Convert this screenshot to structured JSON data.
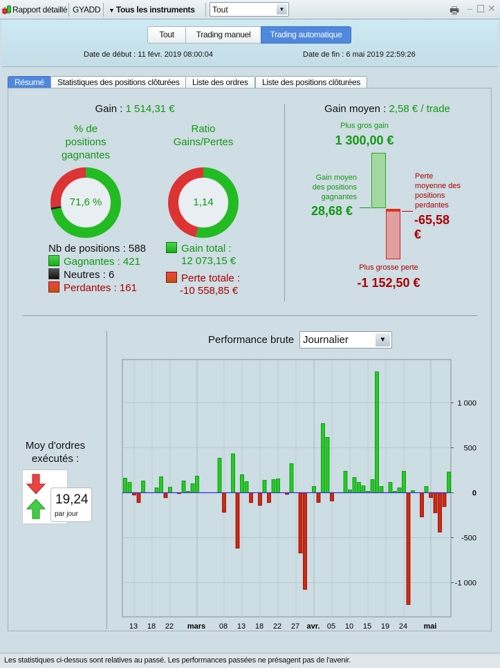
{
  "toolbar": {
    "report_label": "Rapport détaillé",
    "account": "GYADD",
    "instruments_label": "Tous les instruments",
    "filter_value": "Tout",
    "icons": [
      "candlestick-icon",
      "print-icon",
      "minimize-icon",
      "maximize-icon",
      "close-icon"
    ]
  },
  "header": {
    "segments": [
      "Tout",
      "Trading manuel",
      "Trading automatique"
    ],
    "active_segment": "Trading automatique",
    "start_label": "Date de début :",
    "start_value": "11 févr. 2019 08:00:04",
    "end_label": "Date de fin :",
    "end_value": "6 mai 2019 22:59:26"
  },
  "tabs": [
    "Résumé",
    "Statistiques des positions clôturées",
    "Liste des ordres",
    "Liste des positions clôturées"
  ],
  "active_tab": "Résumé",
  "summary": {
    "gain_label": "Gain :",
    "gain_value": "1 514,31 €",
    "win_pct_title_1": "% de",
    "win_pct_title_2": "positions",
    "win_pct_title_3": "gagnantes",
    "win_pct_value": "71,6 %",
    "ratio_title_1": "Ratio",
    "ratio_title_2": "Gains/Pertes",
    "ratio_value": "1,14",
    "positions_label": "Nb de positions : 588",
    "winners": "Gagnantes : 421",
    "neutral": "Neutres : 6",
    "losers": "Perdantes : 161",
    "positions_counts": {
      "winners": 421,
      "neutral": 6,
      "losers": 161
    },
    "gain_total_label": "Gain total :",
    "gain_total_value": "12 073,15 €",
    "loss_total_label": "Perte totale :",
    "loss_total_value": "-10 558,85 €",
    "gain_loss_amounts": {
      "gain": 12073.15,
      "loss": 10558.85
    },
    "colors": {
      "gain": "#22bb22",
      "loss": "#dd3333",
      "neutral": "#222222"
    }
  },
  "averages": {
    "avg_gain_label": "Gain moyen :",
    "avg_gain_value": "2,58 € / trade",
    "biggest_gain_label": "Plus gros gain",
    "biggest_gain_value": "1 300,00 €",
    "avg_win_label_1": "Gain moyen",
    "avg_win_label_2": "des positions",
    "avg_win_label_3": "gagnantes",
    "avg_win_value": "28,68 €",
    "avg_loss_label_1": "Perte",
    "avg_loss_label_2": "moyenne des",
    "avg_loss_label_3": "positions",
    "avg_loss_label_4": "perdantes",
    "avg_loss_value_1": "-65,58",
    "avg_loss_value_2": "€",
    "biggest_loss_label": "Plus grosse perte",
    "biggest_loss_value": "-1 152,50 €"
  },
  "orders": {
    "label_1": "Moy d'ordres",
    "label_2": "exécutés :",
    "value": "19,24",
    "unit": "par jour"
  },
  "performance": {
    "label": "Performance brute",
    "period_value": "Journalier"
  },
  "chart_data": {
    "type": "bar",
    "ylim": [
      -1380,
      1480
    ],
    "y_ticks": [
      1000,
      500,
      0,
      -500,
      -1000
    ],
    "y_tick_labels": [
      "1 000",
      "500",
      "0",
      "-500",
      "-1 000"
    ],
    "x_ticks": [
      {
        "date": "2019-02-13",
        "label": "13"
      },
      {
        "date": "2019-02-18",
        "label": "18"
      },
      {
        "date": "2019-02-22",
        "label": "22"
      },
      {
        "date": "2019-03-01",
        "label": "mars",
        "bold": true
      },
      {
        "date": "2019-03-08",
        "label": "08"
      },
      {
        "date": "2019-03-13",
        "label": "13"
      },
      {
        "date": "2019-03-18",
        "label": "18"
      },
      {
        "date": "2019-03-22",
        "label": "22"
      },
      {
        "date": "2019-03-27",
        "label": "27"
      },
      {
        "date": "2019-04-01",
        "label": "avr.",
        "bold": true
      },
      {
        "date": "2019-04-05",
        "label": "05"
      },
      {
        "date": "2019-04-10",
        "label": "10"
      },
      {
        "date": "2019-04-15",
        "label": "15"
      },
      {
        "date": "2019-04-19",
        "label": "19"
      },
      {
        "date": "2019-04-24",
        "label": "24"
      },
      {
        "date": "2019-05-01",
        "label": "mai",
        "bold": true
      }
    ],
    "grid": true,
    "colors": {
      "positive": "#22cc22",
      "negative": "#cc2a10",
      "zero_line": "#3333cc"
    },
    "x": [
      "2019-02-11",
      "2019-02-12",
      "2019-02-13",
      "2019-02-14",
      "2019-02-15",
      "2019-02-19",
      "2019-02-20",
      "2019-02-21",
      "2019-02-22",
      "2019-02-25",
      "2019-02-26",
      "2019-02-27",
      "2019-02-28",
      "2019-03-01",
      "2019-03-07",
      "2019-03-08",
      "2019-03-11",
      "2019-03-12",
      "2019-03-13",
      "2019-03-14",
      "2019-03-15",
      "2019-03-18",
      "2019-03-19",
      "2019-03-20",
      "2019-03-21",
      "2019-03-22",
      "2019-03-25",
      "2019-03-26",
      "2019-03-28",
      "2019-03-29",
      "2019-04-01",
      "2019-04-02",
      "2019-04-03",
      "2019-04-04",
      "2019-04-05",
      "2019-04-09",
      "2019-04-10",
      "2019-04-11",
      "2019-04-12",
      "2019-04-14",
      "2019-04-15",
      "2019-04-16",
      "2019-04-17",
      "2019-04-18",
      "2019-04-21",
      "2019-04-22",
      "2019-04-23",
      "2019-04-24",
      "2019-04-25",
      "2019-04-26",
      "2019-04-29",
      "2019-04-30",
      "2019-05-01",
      "2019-05-02",
      "2019-05-03",
      "2019-05-05",
      "2019-05-06"
    ],
    "values": [
      161,
      115,
      -26,
      -110,
      131,
      54,
      177,
      -56,
      61,
      -10,
      131,
      15,
      100,
      184,
      384,
      -218,
      433,
      -617,
      200,
      123,
      -110,
      -141,
      138,
      -110,
      146,
      154,
      -18,
      323,
      -671,
      -1075,
      69,
      -108,
      769,
      615,
      -92,
      238,
      31,
      169,
      115,
      77,
      15,
      146,
      1344,
      69,
      115,
      15,
      54,
      238,
      -1244,
      23,
      -269,
      69,
      -54,
      -223,
      -438,
      -154,
      230
    ]
  },
  "footer": "Les statistiques ci-dessus sont relatives au passé. Les performances passées ne présagent pas de l'avenir."
}
